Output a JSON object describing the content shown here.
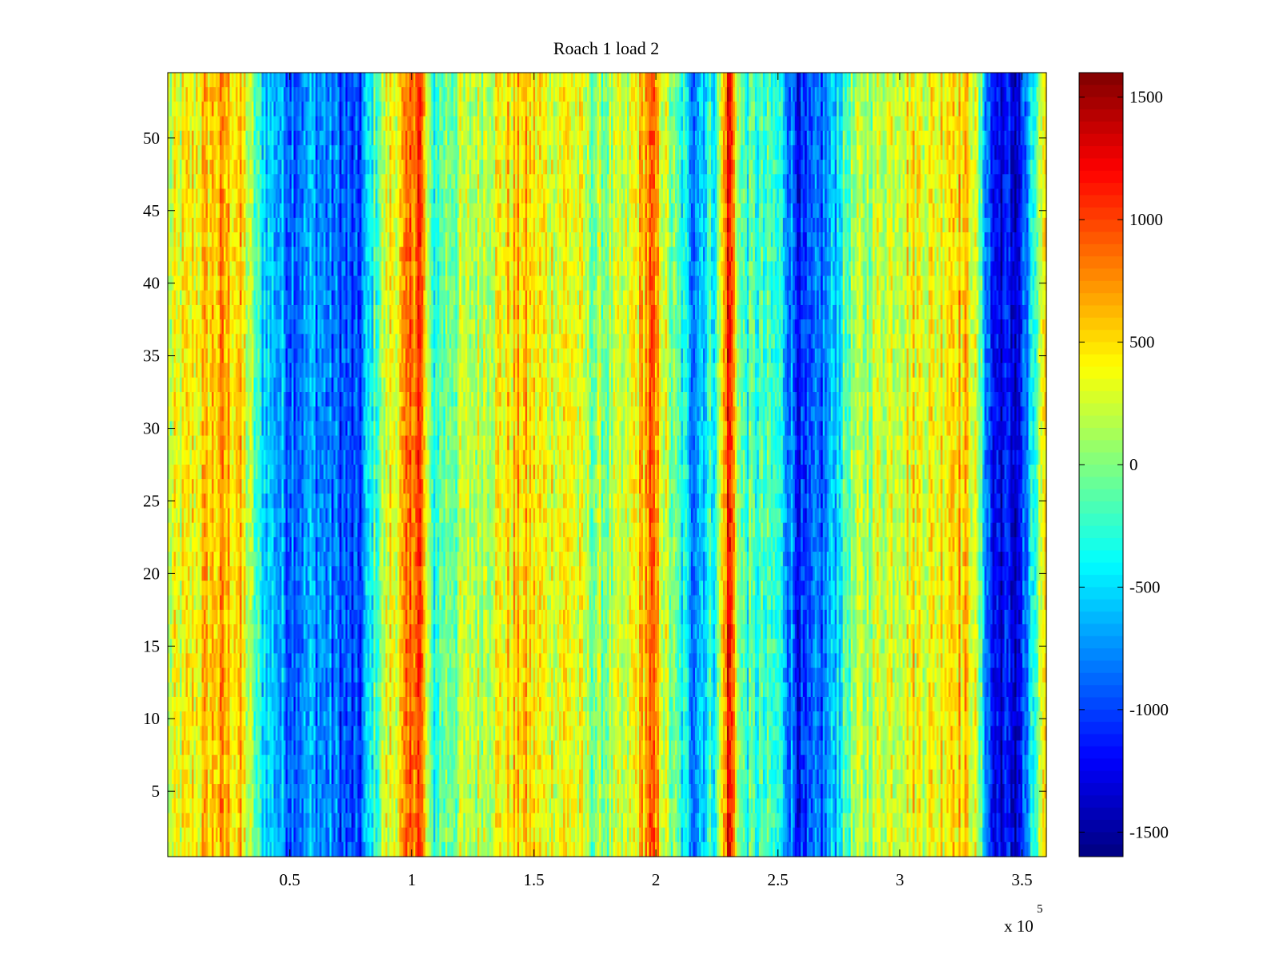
{
  "chart_data": {
    "type": "heatmap",
    "title": "Roach 1 load 2",
    "xlabel": "",
    "ylabel": "",
    "x_multiplier_label": "x 10",
    "x_multiplier_exponent": "5",
    "xlim": [
      0,
      3.6
    ],
    "ylim": [
      0.5,
      54.5
    ],
    "x_ticks": [
      {
        "value": 0.5,
        "label": "0.5"
      },
      {
        "value": 1,
        "label": "1"
      },
      {
        "value": 1.5,
        "label": "1.5"
      },
      {
        "value": 2,
        "label": "2"
      },
      {
        "value": 2.5,
        "label": "2.5"
      },
      {
        "value": 3,
        "label": "3"
      },
      {
        "value": 3.5,
        "label": "3.5"
      }
    ],
    "y_ticks": [
      {
        "value": 5,
        "label": "5"
      },
      {
        "value": 10,
        "label": "10"
      },
      {
        "value": 15,
        "label": "15"
      },
      {
        "value": 20,
        "label": "20"
      },
      {
        "value": 25,
        "label": "25"
      },
      {
        "value": 30,
        "label": "30"
      },
      {
        "value": 35,
        "label": "35"
      },
      {
        "value": 40,
        "label": "40"
      },
      {
        "value": 45,
        "label": "45"
      },
      {
        "value": 50,
        "label": "50"
      }
    ],
    "rows": 54,
    "colormap": "jet",
    "clim": [
      -1600,
      1600
    ],
    "colorbar": {
      "placement": "right",
      "ticks": [
        {
          "value": 1500,
          "label": "1500"
        },
        {
          "value": 1000,
          "label": "1000"
        },
        {
          "value": 500,
          "label": "500"
        },
        {
          "value": 0,
          "label": "0"
        },
        {
          "value": -500,
          "label": "-500"
        },
        {
          "value": -1000,
          "label": "-1000"
        },
        {
          "value": -1500,
          "label": "-1500"
        }
      ]
    },
    "column_profile": [
      {
        "x": 0.0,
        "value": 150
      },
      {
        "x": 0.1,
        "value": 400
      },
      {
        "x": 0.22,
        "value": 650
      },
      {
        "x": 0.3,
        "value": 500
      },
      {
        "x": 0.38,
        "value": -400
      },
      {
        "x": 0.5,
        "value": -800
      },
      {
        "x": 0.6,
        "value": -700
      },
      {
        "x": 0.7,
        "value": -900
      },
      {
        "x": 0.78,
        "value": -1100
      },
      {
        "x": 0.84,
        "value": -300
      },
      {
        "x": 0.9,
        "value": 300
      },
      {
        "x": 0.96,
        "value": 500
      },
      {
        "x": 1.03,
        "value": 1150
      },
      {
        "x": 1.08,
        "value": -300
      },
      {
        "x": 1.15,
        "value": 0
      },
      {
        "x": 1.3,
        "value": 250
      },
      {
        "x": 1.45,
        "value": 550
      },
      {
        "x": 1.55,
        "value": 350
      },
      {
        "x": 1.65,
        "value": 400
      },
      {
        "x": 1.75,
        "value": 0
      },
      {
        "x": 1.88,
        "value": 150
      },
      {
        "x": 1.98,
        "value": 850
      },
      {
        "x": 2.05,
        "value": 100
      },
      {
        "x": 2.15,
        "value": -700
      },
      {
        "x": 2.25,
        "value": -200
      },
      {
        "x": 2.3,
        "value": 1300
      },
      {
        "x": 2.35,
        "value": -200
      },
      {
        "x": 2.5,
        "value": -300
      },
      {
        "x": 2.6,
        "value": -1200
      },
      {
        "x": 2.7,
        "value": -800
      },
      {
        "x": 2.8,
        "value": 0
      },
      {
        "x": 2.95,
        "value": 300
      },
      {
        "x": 3.05,
        "value": 400
      },
      {
        "x": 3.15,
        "value": 350
      },
      {
        "x": 3.22,
        "value": 650
      },
      {
        "x": 3.3,
        "value": 400
      },
      {
        "x": 3.38,
        "value": -1200
      },
      {
        "x": 3.48,
        "value": -1300
      },
      {
        "x": 3.53,
        "value": -700
      },
      {
        "x": 3.58,
        "value": 200
      },
      {
        "x": 3.6,
        "value": 300
      }
    ]
  }
}
